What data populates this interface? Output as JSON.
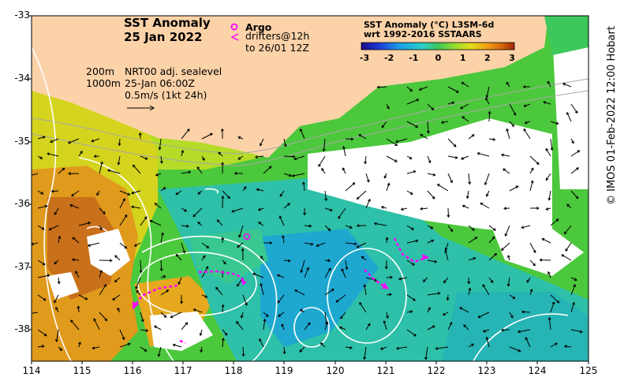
{
  "title": {
    "line1": "SST Anomaly",
    "line2": "25 Jan 2022"
  },
  "legend": {
    "argo_label": "Argo",
    "argo_symbol": "o",
    "drifters_label": "drifters@12h",
    "drifters_symbol": "<",
    "drifters_until": "to 26/01 12Z",
    "marker_color": "#ff00ff"
  },
  "info": {
    "contour_200": "200m",
    "contour_1000": "1000m",
    "sealevel_product": "NRT00 adj. sealevel",
    "sealevel_time": "25-Jan 06:00Z",
    "vector_scale": "0.5m/s (1kt 24h)"
  },
  "colorbar": {
    "title_line1": "SST Anomaly (°C) L3SM-6d",
    "title_line2": "wrt 1992-2016 SSTAARS",
    "ticks": [
      "-3",
      "-2",
      "-1",
      "0",
      "1",
      "2",
      "3"
    ],
    "colors": [
      "#1a0a8c",
      "#1e3cd8",
      "#1ea0e6",
      "#2ad0c8",
      "#3cc85a",
      "#9ede2c",
      "#e6dc1e",
      "#f0a014",
      "#d2640a",
      "#a0280a"
    ]
  },
  "axes": {
    "y_ticks": [
      "-33",
      "-34",
      "-35",
      "-36",
      "-37",
      "-38"
    ],
    "x_ticks": [
      "114",
      "115",
      "116",
      "117",
      "118",
      "119",
      "120",
      "121",
      "122",
      "123",
      "124",
      "125"
    ]
  },
  "colors": {
    "land": "#fcd2a8",
    "sea_level_contour": "#ffffff",
    "depth_contour": "#a8a8a8"
  },
  "credit": "© IMOS 01-Feb-2022 12:00 Hobart"
}
